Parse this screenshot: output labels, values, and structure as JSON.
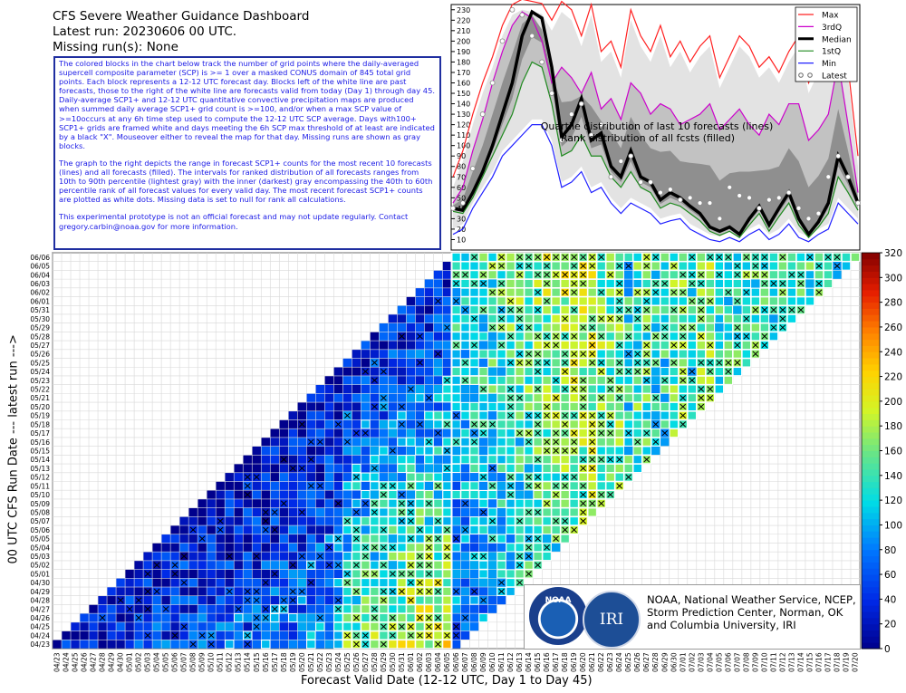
{
  "header": {
    "title": "CFS Severe Weather Guidance Dashboard",
    "latest_run": "Latest run: 20230606 00 UTC.",
    "missing_runs": "Missing run(s): None"
  },
  "description": {
    "paragraph1": "The colored blocks in the chart below track the number of grid points where the daily-averaged supercell composite parameter (SCP) is >= 1 over a masked CONUS domain of 845 total grid points. Each block represents a 12-12 UTC forecast day. Blocks left of the white line are past forecasts, those to the right of the white line are forecasts valid from today (Day 1) through day 45. Daily-average SCP1+ and 12-12 UTC quantitative convective precipitation maps are produced when summed daily average SCP1+ grid count is >=100, and/or when a max SCP value of >=10occurs at any 6h time step used to compute the 12-12 UTC SCP average. Days with100+ SCP1+ grids are framed white and days meeting the 6h SCP max threshold of at least    are indicated by a black \"X\". Mouseover either to reveal the map for that day. Missing runs are shown as gray blocks.",
    "paragraph2": "The graph to the right depicts the range in forecast SCP1+ counts for the most recent 10 forecasts (lines) and all forecasts (filled). The intervals for ranked distribution of all forecasts ranges from 10th to 90th percentile (lightest gray) with the inner (darkest) gray encompassing the 40th to 60th percentile rank of all forecast values for every valid day. The most recent forecast SCP1+ counts are plotted as white dots. Missing data is set to null for rank all calculations.",
    "paragraph3": "This experimental prototype is not an official forecast and may not update regularly. Contact gregory.carbin@noaa.gov for more information."
  },
  "credits": {
    "line1": "NOAA, National Weather Service, NCEP,",
    "line2": "Storm Prediction Center, Norman, OK",
    "line3": "and Columbia University, IRI",
    "noaa_logo": "NOAA",
    "iri_logo": "IRI"
  },
  "colors": {
    "max": "#ff2020",
    "q3": "#cc00cc",
    "median": "#000000",
    "q1": "#1f8a1f",
    "min": "#2020ff"
  },
  "chart_data": [
    {
      "type": "line",
      "annotation_line1": "Quartile distribution of last 10 forecasts (lines)",
      "annotation_line2": "Rank distribution of all fcsts (filled)",
      "ylim": [
        0,
        235
      ],
      "yticks": [
        10,
        20,
        30,
        40,
        50,
        60,
        70,
        80,
        90,
        100,
        110,
        120,
        130,
        140,
        150,
        160,
        170,
        180,
        190,
        200,
        210,
        220,
        230
      ],
      "legend": {
        "placement": "top-right",
        "entries": [
          "Max",
          "3rdQ",
          "Median",
          "1stQ",
          "Min",
          "Latest"
        ]
      },
      "series": [
        {
          "name": "Max",
          "values": [
            70,
            95,
            130,
            160,
            185,
            215,
            235,
            240,
            238,
            236,
            220,
            238,
            230,
            205,
            235,
            190,
            200,
            175,
            230,
            205,
            190,
            215,
            185,
            200,
            180,
            195,
            205,
            165,
            185,
            205,
            195,
            175,
            185,
            170,
            190,
            205,
            160,
            180,
            210,
            215,
            175,
            90
          ]
        },
        {
          "name": "3rdQ",
          "values": [
            45,
            60,
            95,
            125,
            160,
            190,
            215,
            228,
            222,
            200,
            160,
            175,
            165,
            150,
            170,
            135,
            145,
            125,
            160,
            150,
            130,
            140,
            135,
            120,
            125,
            130,
            140,
            115,
            125,
            135,
            120,
            110,
            130,
            120,
            140,
            140,
            105,
            115,
            130,
            180,
            120,
            55
          ]
        },
        {
          "name": "Median",
          "values": [
            40,
            38,
            55,
            75,
            100,
            130,
            160,
            205,
            228,
            222,
            175,
            108,
            120,
            145,
            105,
            112,
            80,
            70,
            95,
            70,
            65,
            48,
            55,
            50,
            42,
            35,
            22,
            18,
            22,
            15,
            30,
            42,
            24,
            40,
            55,
            30,
            15,
            27,
            45,
            90,
            70,
            45
          ]
        },
        {
          "name": "1stQ",
          "values": [
            37,
            35,
            50,
            70,
            90,
            110,
            130,
            160,
            180,
            175,
            140,
            90,
            95,
            110,
            90,
            90,
            70,
            60,
            75,
            60,
            55,
            40,
            45,
            42,
            35,
            28,
            18,
            14,
            18,
            12,
            24,
            35,
            18,
            32,
            45,
            24,
            12,
            22,
            35,
            70,
            55,
            38
          ]
        },
        {
          "name": "Min",
          "values": [
            15,
            20,
            40,
            55,
            70,
            90,
            100,
            110,
            120,
            120,
            100,
            60,
            65,
            75,
            55,
            60,
            45,
            35,
            45,
            40,
            35,
            25,
            28,
            30,
            20,
            15,
            10,
            8,
            12,
            8,
            15,
            20,
            10,
            15,
            25,
            12,
            8,
            15,
            20,
            45,
            35,
            25
          ]
        }
      ],
      "latest": [
        40,
        45,
        78,
        130,
        160,
        200,
        230,
        225,
        205,
        180,
        150,
        105,
        130,
        140,
        110,
        120,
        70,
        85,
        90,
        65,
        65,
        55,
        58,
        48,
        50,
        45,
        45,
        30,
        60,
        52,
        50,
        40,
        48,
        50,
        55,
        40,
        30,
        35,
        70,
        90,
        70,
        45
      ]
    },
    {
      "type": "heatmap",
      "xlabel": "Forecast Valid Date (12-12 UTC, Day 1 to Day 45)",
      "ylabel": "00 UTC CFS Run Date --- latest run --->",
      "colorbar_range": [
        0,
        320
      ],
      "colorbar_ticks": [
        0,
        20,
        40,
        60,
        80,
        100,
        120,
        140,
        160,
        180,
        200,
        220,
        240,
        260,
        280,
        300,
        320
      ],
      "today_line": "06/06",
      "run_dates": [
        "04/23",
        "04/24",
        "04/25",
        "04/26",
        "04/27",
        "04/28",
        "04/29",
        "04/30",
        "05/01",
        "05/02",
        "05/03",
        "05/04",
        "05/05",
        "05/06",
        "05/07",
        "05/08",
        "05/09",
        "05/10",
        "05/11",
        "05/12",
        "05/13",
        "05/14",
        "05/15",
        "05/16",
        "05/17",
        "05/18",
        "05/19",
        "05/20",
        "05/21",
        "05/22",
        "05/23",
        "05/24",
        "05/25",
        "05/26",
        "05/27",
        "05/28",
        "05/29",
        "05/30",
        "05/31",
        "06/01",
        "06/02",
        "06/03",
        "06/04",
        "06/05",
        "06/06"
      ],
      "valid_dates": [
        "04/23",
        "04/24",
        "04/25",
        "04/26",
        "04/27",
        "04/28",
        "04/29",
        "04/30",
        "05/01",
        "05/02",
        "05/03",
        "05/04",
        "05/05",
        "05/06",
        "05/07",
        "05/08",
        "05/09",
        "05/10",
        "05/11",
        "05/12",
        "05/13",
        "05/14",
        "05/15",
        "05/16",
        "05/17",
        "05/18",
        "05/19",
        "05/20",
        "05/21",
        "05/22",
        "05/23",
        "05/24",
        "05/25",
        "05/26",
        "05/27",
        "05/28",
        "05/29",
        "05/30",
        "05/31",
        "06/01",
        "06/02",
        "06/03",
        "06/04",
        "06/05",
        "06/06",
        "06/07",
        "06/08",
        "06/09",
        "06/10",
        "06/11",
        "06/12",
        "06/13",
        "06/14",
        "06/15",
        "06/16",
        "06/17",
        "06/18",
        "06/19",
        "06/20",
        "06/21",
        "06/22",
        "06/23",
        "06/24",
        "06/25",
        "06/26",
        "06/27",
        "06/28",
        "06/29",
        "06/30",
        "07/01",
        "07/02",
        "07/03",
        "07/04",
        "07/05",
        "07/06",
        "07/07",
        "07/08",
        "07/09",
        "07/10",
        "07/11",
        "07/12",
        "07/13",
        "07/14",
        "07/15",
        "07/16",
        "07/17",
        "07/18",
        "07/19",
        "07/20"
      ]
    }
  ]
}
